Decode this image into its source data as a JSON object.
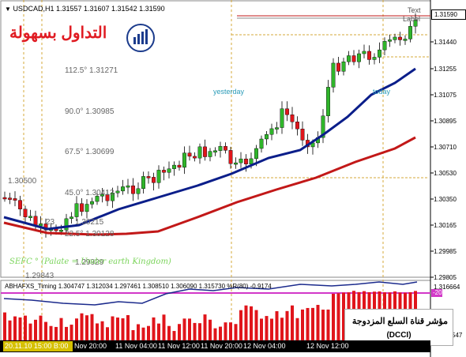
{
  "header": {
    "symbol_title": "USDCAD,H1",
    "ohlc": "1.31557 1.31607 1.31542 1.31590"
  },
  "logo": {
    "text": "التداول بسهولة"
  },
  "price_axis": {
    "labels": [
      "1.31440",
      "1.31255",
      "1.31075",
      "1.30895",
      "1.30710",
      "1.30530",
      "1.30350",
      "1.30165",
      "1.29985",
      "1.29805"
    ],
    "current_price": "1.31590"
  },
  "fib_levels": [
    "112.5° 1.31271",
    "90.0° 1.30985",
    "67.5° 1.30699",
    "45.0° 1.30413",
    "22.5° 1.30128"
  ],
  "fib_partial": {
    "p1": "1.30500",
    "p2": "1.30215",
    "p3": "1.29929",
    "p4": "1.29843",
    "p5": "23"
  },
  "captions": {
    "yesterday": "yesterday",
    "today": "today",
    "text": "Text",
    "label": "Label"
  },
  "annotation": {
    "sefc": "SEFC ° (Palate = Under earth Kingdom)"
  },
  "indicator": {
    "header": "ABHAFXS_Timing 1.304747 1.312034 1.297461 1.308510 1.306090 1.315730 %R(80) -0.9174",
    "right_value": "1.316664",
    "level": "-20",
    "bottom_value": "547"
  },
  "time_axis": {
    "selected": "20.11.10 15:00 B:00",
    "labels": [
      "Nov 20:00",
      "11 Nov 04:00",
      "11 Nov 12:00",
      "11 Nov 20:00",
      "12 Nov 04:00",
      "12 Nov 12:00"
    ]
  },
  "dcci_box": {
    "title": "مؤشر قناة السلع المزدوجة",
    "subtitle": "(DCCI)"
  },
  "colors": {
    "bull": "#2fb52a",
    "bear": "#e0151b",
    "ma_fast": "#0b1e8a",
    "ma_slow": "#c21818",
    "hist": "#e0151b",
    "fib_line": "#d6a83a"
  }
}
